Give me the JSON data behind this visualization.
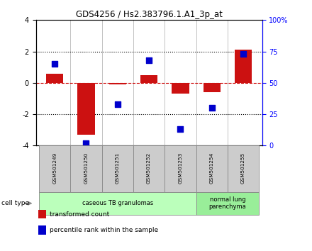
{
  "title": "GDS4256 / Hs2.383796.1.A1_3p_at",
  "samples": [
    "GSM501249",
    "GSM501250",
    "GSM501251",
    "GSM501252",
    "GSM501253",
    "GSM501254",
    "GSM501255"
  ],
  "transformed_counts": [
    0.6,
    -3.3,
    -0.1,
    0.5,
    -0.7,
    -0.6,
    2.1
  ],
  "percentile_ranks": [
    65,
    2,
    33,
    68,
    13,
    30,
    73
  ],
  "ylim_left": [
    -4,
    4
  ],
  "ylim_right": [
    0,
    100
  ],
  "yticks_left": [
    -4,
    -2,
    0,
    2,
    4
  ],
  "yticks_right": [
    0,
    25,
    50,
    75,
    100
  ],
  "ytick_labels_right": [
    "0",
    "25",
    "50",
    "75",
    "100%"
  ],
  "bar_color": "#cc1111",
  "dot_color": "#0000cc",
  "hline_color": "#cc0000",
  "dotline_color": "#000000",
  "bg_color": "#ffffff",
  "cell_type_groups": [
    {
      "label": "caseous TB granulomas",
      "indices": [
        0,
        1,
        2,
        3,
        4
      ],
      "color": "#bbffbb"
    },
    {
      "label": "normal lung\nparenchyma",
      "indices": [
        5,
        6
      ],
      "color": "#99ee99"
    }
  ],
  "cell_type_label": "cell type",
  "legend_items": [
    {
      "label": "transformed count",
      "color": "#cc1111"
    },
    {
      "label": "percentile rank within the sample",
      "color": "#0000cc"
    }
  ],
  "bar_width": 0.55,
  "dot_size": 30,
  "sample_box_color": "#cccccc",
  "sample_box_edge": "#888888"
}
